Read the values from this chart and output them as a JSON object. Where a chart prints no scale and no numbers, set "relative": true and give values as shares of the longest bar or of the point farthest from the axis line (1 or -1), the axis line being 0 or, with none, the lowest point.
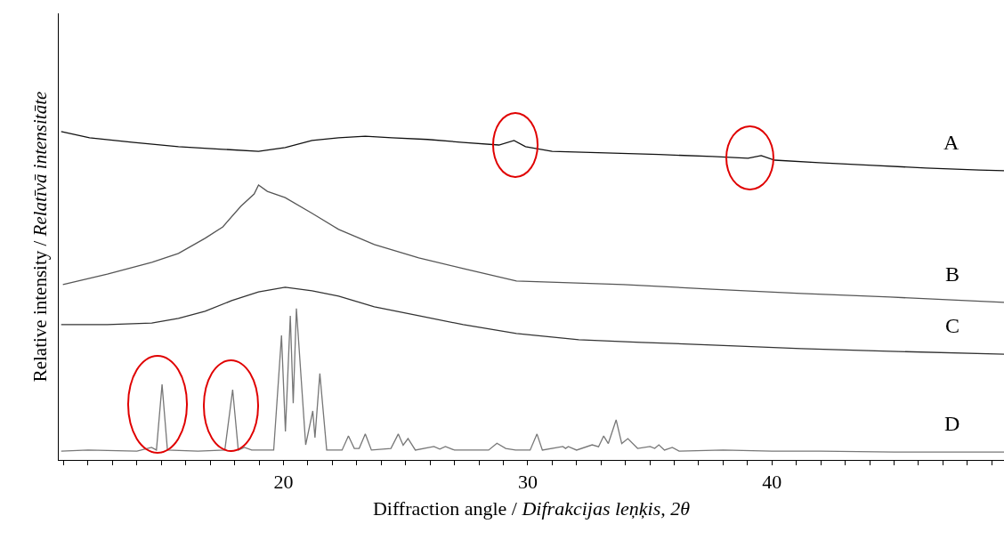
{
  "chart_data": {
    "type": "line",
    "relative": true,
    "xlabel": "Diffraction angle / Difrakcijas leņķis, 2θ",
    "ylabel": "Relative intensity / Relatīvā intensitāte",
    "xlim": [
      10.8,
      49.5
    ],
    "xticks": [
      {
        "value": 11,
        "label": null
      },
      {
        "value": 12,
        "label": null
      },
      {
        "value": 13,
        "label": null
      },
      {
        "value": 14,
        "label": null
      },
      {
        "value": 15,
        "label": null
      },
      {
        "value": 16,
        "label": null
      },
      {
        "value": 17,
        "label": null
      },
      {
        "value": 18,
        "label": null
      },
      {
        "value": 19,
        "label": null
      },
      20,
      {
        "value": 21,
        "label": null
      },
      {
        "value": 22,
        "label": null
      },
      {
        "value": 23,
        "label": null
      },
      {
        "value": 24,
        "label": null
      },
      {
        "value": 25,
        "label": null
      },
      {
        "value": 26,
        "label": null
      },
      {
        "value": 27,
        "label": null
      },
      {
        "value": 28,
        "label": null
      },
      {
        "value": 29,
        "label": null
      },
      30,
      {
        "value": 31,
        "label": null
      },
      {
        "value": 32,
        "label": null
      },
      {
        "value": 33,
        "label": null
      },
      {
        "value": 34,
        "label": null
      },
      {
        "value": 35,
        "label": null
      },
      {
        "value": 36,
        "label": null
      },
      {
        "value": 37,
        "label": null
      },
      {
        "value": 38,
        "label": null
      },
      {
        "value": 39,
        "label": null
      },
      40,
      {
        "value": 41,
        "label": null
      },
      {
        "value": 42,
        "label": null
      },
      {
        "value": 43,
        "label": null
      },
      {
        "value": 44,
        "label": null
      },
      {
        "value": 45,
        "label": null
      },
      {
        "value": 46,
        "label": null
      },
      {
        "value": 47,
        "label": null
      },
      {
        "value": 48,
        "label": null
      },
      {
        "value": 49,
        "label": null
      }
    ],
    "tick_labels": "x",
    "grid": false,
    "legend": false,
    "marker": "none",
    "line_style": "solid",
    "series": [
      {
        "name": "A",
        "color": "#111111",
        "x": [
          10.9,
          12.06,
          13.88,
          15.7,
          17.52,
          18.98,
          20.07,
          21.17,
          22.26,
          23.35,
          24.44,
          25.9,
          27.36,
          28.82,
          29.44,
          29.91,
          31.0,
          33.19,
          35.37,
          37.56,
          39.02,
          39.56,
          40.11,
          41.93,
          44.12,
          46.3,
          48.49,
          49.5
        ],
        "values": [
          1.0,
          0.981,
          0.967,
          0.954,
          0.946,
          0.94,
          0.951,
          0.973,
          0.981,
          0.986,
          0.981,
          0.976,
          0.967,
          0.959,
          0.973,
          0.954,
          0.94,
          0.935,
          0.93,
          0.924,
          0.919,
          0.927,
          0.913,
          0.905,
          0.897,
          0.889,
          0.883,
          0.881
        ]
      },
      {
        "name": "B",
        "color": "#555555",
        "x": [
          10.97,
          12.79,
          14.61,
          15.7,
          16.79,
          17.52,
          18.25,
          18.8,
          18.98,
          19.34,
          20.07,
          21.17,
          22.26,
          23.72,
          25.54,
          27.36,
          29.54,
          33.92,
          37.56,
          41.2,
          44.84,
          49.5
        ],
        "values": [
          0.534,
          0.566,
          0.602,
          0.629,
          0.675,
          0.71,
          0.772,
          0.81,
          0.837,
          0.818,
          0.799,
          0.751,
          0.702,
          0.656,
          0.615,
          0.583,
          0.545,
          0.534,
          0.52,
          0.507,
          0.496,
          0.48
        ]
      },
      {
        "name": "C",
        "color": "#333333",
        "x": [
          10.9,
          12.79,
          14.61,
          15.7,
          16.79,
          17.88,
          18.98,
          20.07,
          21.17,
          22.26,
          23.72,
          25.54,
          27.36,
          29.54,
          32.09,
          34.64,
          37.56,
          41.2,
          44.84,
          49.5
        ],
        "values": [
          0.412,
          0.412,
          0.417,
          0.431,
          0.453,
          0.485,
          0.512,
          0.526,
          0.515,
          0.499,
          0.466,
          0.439,
          0.412,
          0.385,
          0.366,
          0.358,
          0.35,
          0.339,
          0.331,
          0.322
        ]
      },
      {
        "name": "D",
        "color": "#777777",
        "x": [
          10.9,
          12.0,
          14.0,
          14.6,
          14.8,
          15.03,
          15.25,
          16.5,
          17.6,
          17.92,
          18.15,
          18.4,
          18.7,
          19.6,
          19.92,
          20.08,
          20.28,
          20.4,
          20.53,
          20.91,
          21.2,
          21.29,
          21.49,
          21.77,
          22.4,
          22.66,
          22.9,
          23.1,
          23.35,
          23.6,
          24.4,
          24.7,
          24.9,
          25.1,
          25.4,
          26.16,
          26.4,
          26.63,
          27.0,
          28.4,
          28.74,
          29.1,
          29.5,
          30.1,
          30.38,
          30.6,
          31.44,
          31.55,
          31.66,
          32.0,
          32.64,
          32.9,
          33.11,
          33.3,
          33.62,
          33.85,
          34.1,
          34.5,
          35.01,
          35.2,
          35.37,
          35.6,
          35.92,
          36.2,
          38.0,
          40.0,
          42.0,
          45.0,
          49.5
        ],
        "values": [
          0.027,
          0.03,
          0.027,
          0.038,
          0.03,
          0.23,
          0.03,
          0.027,
          0.03,
          0.214,
          0.03,
          0.038,
          0.03,
          0.03,
          0.379,
          0.087,
          0.439,
          0.173,
          0.461,
          0.046,
          0.149,
          0.068,
          0.263,
          0.03,
          0.03,
          0.073,
          0.035,
          0.035,
          0.079,
          0.03,
          0.035,
          0.079,
          0.045,
          0.065,
          0.03,
          0.041,
          0.033,
          0.041,
          0.03,
          0.03,
          0.051,
          0.035,
          0.03,
          0.03,
          0.079,
          0.03,
          0.041,
          0.035,
          0.041,
          0.03,
          0.046,
          0.04,
          0.073,
          0.05,
          0.122,
          0.05,
          0.065,
          0.035,
          0.041,
          0.035,
          0.046,
          0.03,
          0.038,
          0.027,
          0.03,
          0.027,
          0.027,
          0.024,
          0.024
        ]
      }
    ]
  }
}
